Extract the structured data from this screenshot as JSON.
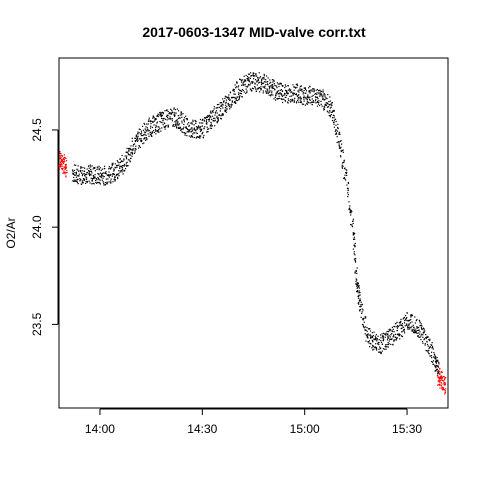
{
  "chart_data": {
    "type": "scatter",
    "title": "2017-0603-1347 MID-valve corr.txt",
    "xlabel": "",
    "ylabel": "O2/Ar",
    "x_type": "time",
    "xlim": [
      "13:48",
      "15:42"
    ],
    "ylim": [
      23.07,
      24.87
    ],
    "x_ticks": [
      "14:00",
      "14:30",
      "15:00",
      "15:30"
    ],
    "y_ticks": [
      "23.5",
      "24.0",
      "24.5"
    ],
    "grid": false,
    "legend": "none",
    "series": [
      {
        "color": "#000000",
        "points": [
          [
            "13:52",
            24.28
          ],
          [
            "13:54",
            24.27
          ],
          [
            "13:56",
            24.28
          ],
          [
            "13:58",
            24.27
          ],
          [
            "14:00",
            24.27
          ],
          [
            "14:02",
            24.27
          ],
          [
            "14:04",
            24.29
          ],
          [
            "14:06",
            24.31
          ],
          [
            "14:08",
            24.36
          ],
          [
            "14:10",
            24.43
          ],
          [
            "14:12",
            24.47
          ],
          [
            "14:14",
            24.51
          ],
          [
            "14:16",
            24.53
          ],
          [
            "14:18",
            24.55
          ],
          [
            "14:20",
            24.56
          ],
          [
            "14:22",
            24.57
          ],
          [
            "14:24",
            24.54
          ],
          [
            "14:26",
            24.51
          ],
          [
            "14:28",
            24.5
          ],
          [
            "14:30",
            24.51
          ],
          [
            "14:32",
            24.55
          ],
          [
            "14:34",
            24.58
          ],
          [
            "14:36",
            24.62
          ],
          [
            "14:38",
            24.66
          ],
          [
            "14:40",
            24.7
          ],
          [
            "14:42",
            24.73
          ],
          [
            "14:44",
            24.75
          ],
          [
            "14:46",
            24.75
          ],
          [
            "14:48",
            24.74
          ],
          [
            "14:50",
            24.72
          ],
          [
            "14:52",
            24.7
          ],
          [
            "14:54",
            24.69
          ],
          [
            "14:56",
            24.69
          ],
          [
            "14:58",
            24.69
          ],
          [
            "15:00",
            24.68
          ],
          [
            "15:02",
            24.68
          ],
          [
            "15:04",
            24.67
          ],
          [
            "15:06",
            24.65
          ],
          [
            "15:08",
            24.6
          ],
          [
            "15:10",
            24.45
          ],
          [
            "15:12",
            24.25
          ],
          [
            "15:14",
            24.0
          ],
          [
            "15:15",
            23.75
          ],
          [
            "15:16",
            23.62
          ],
          [
            "15:18",
            23.45
          ],
          [
            "15:20",
            23.42
          ],
          [
            "15:22",
            23.4
          ],
          [
            "15:24",
            23.42
          ],
          [
            "15:26",
            23.45
          ],
          [
            "15:28",
            23.48
          ],
          [
            "15:30",
            23.52
          ],
          [
            "15:32",
            23.51
          ],
          [
            "15:34",
            23.47
          ],
          [
            "15:36",
            23.4
          ],
          [
            "15:38",
            23.32
          ],
          [
            "15:39",
            23.27
          ]
        ]
      },
      {
        "color": "#ff0000",
        "points": [
          [
            "13:48",
            24.35
          ],
          [
            "13:49",
            24.33
          ],
          [
            "13:50",
            24.31
          ],
          [
            "15:39",
            23.24
          ],
          [
            "15:40",
            23.21
          ],
          [
            "15:41",
            23.19
          ]
        ]
      }
    ]
  }
}
